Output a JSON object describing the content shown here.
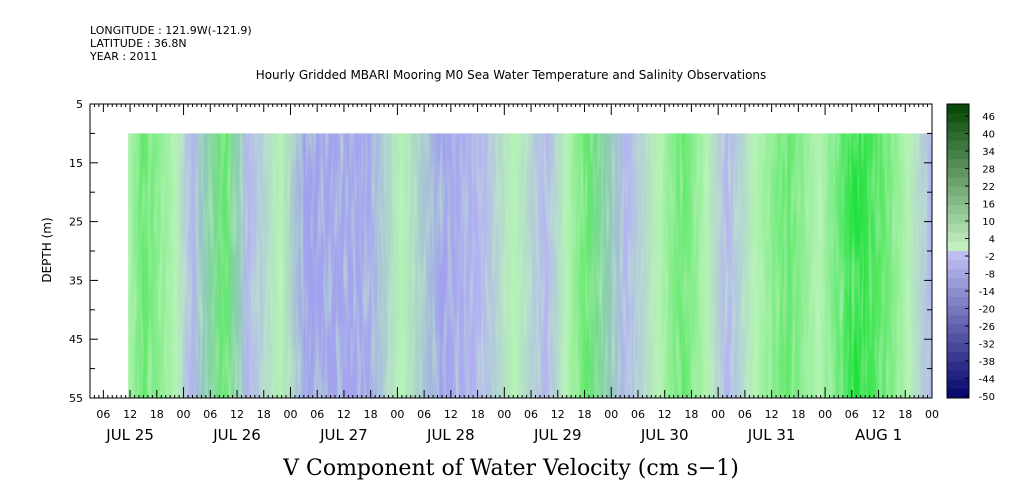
{
  "header": {
    "longitude": "LONGITUDE : 121.9W(-121.9)",
    "latitude": "LATITUDE : 36.8N",
    "year": "YEAR : 2011"
  },
  "chart_data": {
    "type": "heatmap",
    "title": "Hourly Gridded MBARI Mooring M0 Sea Water Temperature and Salinity Observations",
    "xlabel": "V Component of Water Velocity (cm s−1)",
    "ylabel": "DEPTH (m)",
    "ylim": [
      55,
      5
    ],
    "y_ticks": [
      "5",
      "15",
      "25",
      "35",
      "45",
      "55"
    ],
    "x_hour_ticks": [
      "06",
      "12",
      "18",
      "00",
      "06",
      "12",
      "18",
      "00",
      "06",
      "12",
      "18",
      "00",
      "06",
      "12",
      "18",
      "00",
      "06",
      "12",
      "18",
      "00",
      "06",
      "12",
      "18",
      "00",
      "06",
      "12",
      "18",
      "00",
      "06",
      "12",
      "18",
      "00"
    ],
    "x_day_labels": [
      "JUL 25",
      "JUL 26",
      "JUL 27",
      "JUL 28",
      "JUL 29",
      "JUL 30",
      "JUL 31",
      "AUG  1"
    ],
    "data_depth_range_m": [
      10,
      55
    ],
    "colorbar": {
      "levels": [
        "46",
        "40",
        "34",
        "28",
        "22",
        "16",
        "10",
        "4",
        "-2",
        "-8",
        "-14",
        "-20",
        "-26",
        "-32",
        "-38",
        "-44",
        "-50"
      ],
      "negative_color": "#a8a8ec",
      "positive_color": "#3ee04a"
    },
    "colors": {
      "light_green": "#b2f3b2",
      "mid_green": "#60e86a",
      "bright_green": "#1ee03a",
      "pale_purple": "#b4b4f2",
      "purple": "#a0a0ee"
    },
    "grid": false,
    "legend": "right"
  }
}
